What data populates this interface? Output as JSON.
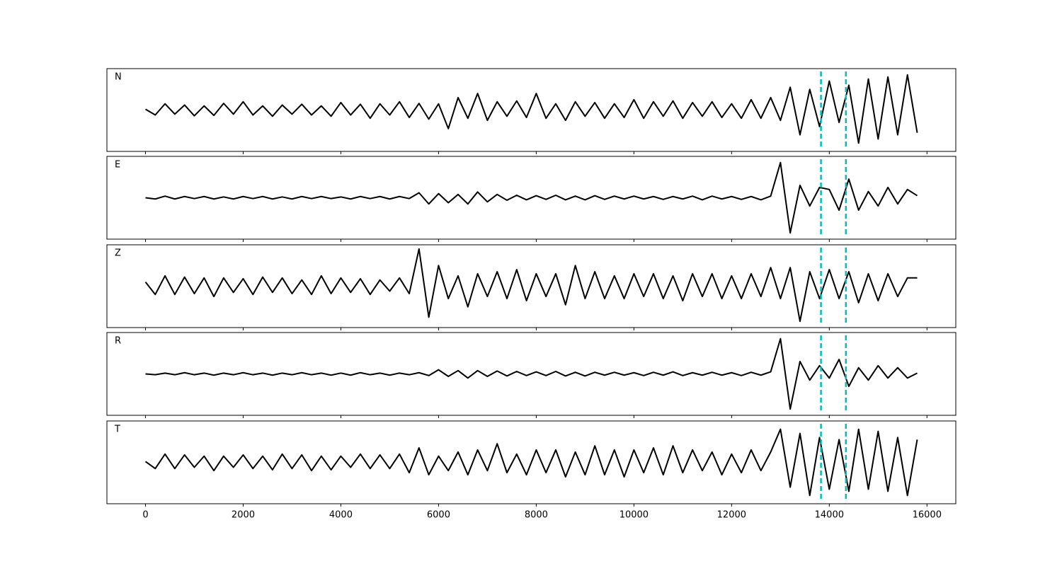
{
  "chart_data": {
    "type": "line",
    "x": [
      0,
      200,
      400,
      600,
      800,
      1000,
      1200,
      1400,
      1600,
      1800,
      2000,
      2200,
      2400,
      2600,
      2800,
      3000,
      3200,
      3400,
      3600,
      3800,
      4000,
      4200,
      4400,
      4600,
      4800,
      5000,
      5200,
      5400,
      5600,
      5800,
      6000,
      6200,
      6400,
      6600,
      6800,
      7000,
      7200,
      7400,
      7600,
      7800,
      8000,
      8200,
      8400,
      8600,
      8800,
      9000,
      9200,
      9400,
      9600,
      9800,
      10000,
      10200,
      10400,
      10600,
      10800,
      11000,
      11200,
      11400,
      11600,
      11800,
      12000,
      12200,
      12400,
      12600,
      12800,
      13000,
      13200,
      13400,
      13600,
      13800,
      14000,
      14200,
      14400,
      14600,
      14800,
      15000,
      15200,
      15400,
      15600,
      15800
    ],
    "xlim": [
      -790,
      16590
    ],
    "xticks": [
      0,
      2000,
      4000,
      6000,
      8000,
      10000,
      12000,
      14000,
      16000
    ],
    "ylim": [
      -1,
      1
    ],
    "vlines": [
      13830,
      14340
    ],
    "vline_color": "#00bfbf",
    "series": [
      {
        "name": "N",
        "color": "#000000",
        "values": [
          0.02,
          -0.12,
          0.15,
          -0.1,
          0.12,
          -0.14,
          0.1,
          -0.13,
          0.16,
          -0.1,
          0.2,
          -0.12,
          0.1,
          -0.15,
          0.12,
          -0.1,
          0.14,
          -0.12,
          0.1,
          -0.15,
          0.18,
          -0.12,
          0.14,
          -0.2,
          0.15,
          -0.12,
          0.2,
          -0.18,
          0.16,
          -0.22,
          0.15,
          -0.45,
          0.3,
          -0.2,
          0.4,
          -0.25,
          0.2,
          -0.15,
          0.22,
          -0.18,
          0.4,
          -0.2,
          0.15,
          -0.25,
          0.2,
          -0.15,
          0.18,
          -0.2,
          0.15,
          -0.18,
          0.25,
          -0.2,
          0.2,
          -0.15,
          0.22,
          -0.2,
          0.18,
          -0.15,
          0.2,
          -0.18,
          0.15,
          -0.2,
          0.25,
          -0.2,
          0.3,
          -0.25,
          0.55,
          -0.6,
          0.5,
          -0.4,
          0.7,
          -0.3,
          0.6,
          -0.8,
          0.75,
          -0.7,
          0.8,
          -0.6,
          0.85,
          -0.55
        ]
      },
      {
        "name": "E",
        "color": "#000000",
        "values": [
          0.0,
          -0.03,
          0.04,
          -0.03,
          0.03,
          -0.02,
          0.03,
          -0.03,
          0.02,
          -0.03,
          0.03,
          -0.02,
          0.03,
          -0.03,
          0.02,
          -0.03,
          0.03,
          -0.02,
          0.03,
          -0.02,
          0.02,
          -0.03,
          0.03,
          -0.02,
          0.03,
          -0.03,
          0.03,
          -0.02,
          0.12,
          -0.15,
          0.1,
          -0.12,
          0.08,
          -0.15,
          0.14,
          -0.1,
          0.08,
          -0.06,
          0.06,
          -0.05,
          0.05,
          -0.04,
          0.06,
          -0.05,
          0.04,
          -0.05,
          0.05,
          -0.04,
          0.04,
          -0.03,
          0.04,
          -0.03,
          0.03,
          -0.04,
          0.03,
          -0.03,
          0.04,
          -0.05,
          0.04,
          -0.03,
          0.03,
          -0.04,
          0.03,
          -0.05,
          0.04,
          0.85,
          -0.85,
          0.3,
          -0.2,
          0.25,
          0.2,
          -0.3,
          0.45,
          -0.3,
          0.15,
          -0.2,
          0.25,
          -0.15,
          0.2,
          0.05
        ]
      },
      {
        "name": "Z",
        "color": "#000000",
        "values": [
          0.1,
          -0.2,
          0.25,
          -0.2,
          0.22,
          -0.18,
          0.2,
          -0.25,
          0.2,
          -0.15,
          0.18,
          -0.2,
          0.22,
          -0.15,
          0.2,
          -0.18,
          0.15,
          -0.2,
          0.25,
          -0.18,
          0.2,
          -0.15,
          0.18,
          -0.2,
          0.15,
          -0.12,
          0.2,
          -0.18,
          0.9,
          -0.75,
          0.5,
          -0.3,
          0.25,
          -0.5,
          0.3,
          -0.25,
          0.35,
          -0.3,
          0.4,
          -0.35,
          0.3,
          -0.25,
          0.3,
          -0.45,
          0.5,
          -0.3,
          0.35,
          -0.3,
          0.25,
          -0.3,
          0.3,
          -0.25,
          0.3,
          -0.3,
          0.25,
          -0.35,
          0.3,
          -0.25,
          0.3,
          -0.3,
          0.25,
          -0.3,
          0.3,
          -0.25,
          0.45,
          -0.3,
          0.45,
          -0.85,
          0.35,
          -0.3,
          0.4,
          -0.3,
          0.35,
          -0.4,
          0.3,
          -0.35,
          0.3,
          -0.25,
          0.2,
          0.2
        ]
      },
      {
        "name": "R",
        "color": "#000000",
        "values": [
          0.0,
          -0.02,
          0.02,
          -0.02,
          0.03,
          -0.02,
          0.02,
          -0.03,
          0.02,
          -0.02,
          0.03,
          -0.02,
          0.02,
          -0.03,
          0.02,
          -0.02,
          0.03,
          -0.02,
          0.02,
          -0.03,
          0.02,
          -0.03,
          0.03,
          -0.02,
          0.02,
          -0.03,
          0.02,
          -0.02,
          0.03,
          -0.04,
          0.1,
          -0.06,
          0.08,
          -0.1,
          0.08,
          -0.06,
          0.07,
          -0.05,
          0.06,
          -0.04,
          0.05,
          -0.04,
          0.06,
          -0.05,
          0.04,
          -0.05,
          0.04,
          -0.03,
          0.04,
          -0.03,
          0.03,
          -0.04,
          0.04,
          -0.03,
          0.05,
          -0.04,
          0.03,
          -0.03,
          0.04,
          -0.03,
          0.03,
          -0.04,
          0.04,
          -0.03,
          0.05,
          0.85,
          -0.85,
          0.3,
          -0.15,
          0.2,
          -0.1,
          0.35,
          -0.3,
          0.15,
          -0.15,
          0.2,
          -0.1,
          0.15,
          -0.1,
          0.02
        ]
      },
      {
        "name": "T",
        "color": "#000000",
        "values": [
          0.02,
          -0.15,
          0.2,
          -0.15,
          0.18,
          -0.12,
          0.15,
          -0.2,
          0.15,
          -0.12,
          0.18,
          -0.15,
          0.15,
          -0.18,
          0.2,
          -0.15,
          0.18,
          -0.2,
          0.15,
          -0.18,
          0.15,
          -0.12,
          0.2,
          -0.15,
          0.18,
          -0.15,
          0.2,
          -0.25,
          0.35,
          -0.3,
          0.15,
          -0.2,
          0.25,
          -0.3,
          0.3,
          -0.2,
          0.45,
          -0.25,
          0.2,
          -0.3,
          0.3,
          -0.25,
          0.3,
          -0.35,
          0.25,
          -0.3,
          0.4,
          -0.3,
          0.3,
          -0.35,
          0.3,
          -0.25,
          0.35,
          -0.3,
          0.4,
          -0.25,
          0.3,
          -0.2,
          0.25,
          -0.3,
          0.2,
          -0.25,
          0.3,
          -0.2,
          0.25,
          0.8,
          -0.6,
          0.7,
          -0.8,
          0.6,
          -0.65,
          0.55,
          -0.7,
          0.8,
          -0.65,
          0.75,
          -0.7,
          0.6,
          -0.8,
          0.55
        ]
      }
    ]
  }
}
